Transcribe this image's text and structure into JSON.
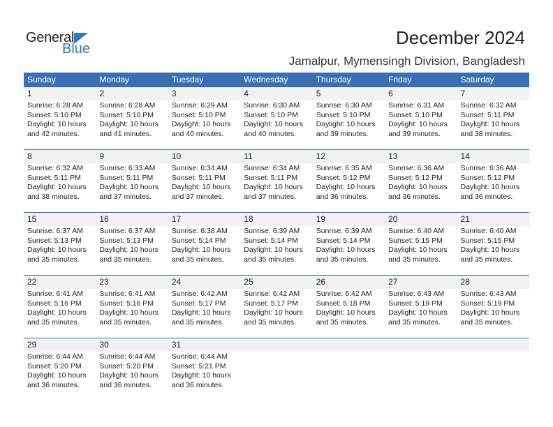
{
  "logo": {
    "text_general": "General",
    "text_blue": "Blue",
    "color": "#2c78c4"
  },
  "header": {
    "title": "December 2024",
    "location": "Jamalpur, Mymensingh Division, Bangladesh"
  },
  "colors": {
    "header_bg": "#3a70b3",
    "daynum_bg": "#f2f2f2"
  },
  "weekdays": [
    "Sunday",
    "Monday",
    "Tuesday",
    "Wednesday",
    "Thursday",
    "Friday",
    "Saturday"
  ],
  "days": [
    {
      "day": "1",
      "sunrise": "Sunrise: 6:28 AM",
      "sunset": "Sunset: 5:10 PM",
      "daylight1": "Daylight: 10 hours",
      "daylight2": "and 42 minutes."
    },
    {
      "day": "2",
      "sunrise": "Sunrise: 6:28 AM",
      "sunset": "Sunset: 5:10 PM",
      "daylight1": "Daylight: 10 hours",
      "daylight2": "and 41 minutes."
    },
    {
      "day": "3",
      "sunrise": "Sunrise: 6:29 AM",
      "sunset": "Sunset: 5:10 PM",
      "daylight1": "Daylight: 10 hours",
      "daylight2": "and 40 minutes."
    },
    {
      "day": "4",
      "sunrise": "Sunrise: 6:30 AM",
      "sunset": "Sunset: 5:10 PM",
      "daylight1": "Daylight: 10 hours",
      "daylight2": "and 40 minutes."
    },
    {
      "day": "5",
      "sunrise": "Sunrise: 6:30 AM",
      "sunset": "Sunset: 5:10 PM",
      "daylight1": "Daylight: 10 hours",
      "daylight2": "and 39 minutes."
    },
    {
      "day": "6",
      "sunrise": "Sunrise: 6:31 AM",
      "sunset": "Sunset: 5:10 PM",
      "daylight1": "Daylight: 10 hours",
      "daylight2": "and 39 minutes."
    },
    {
      "day": "7",
      "sunrise": "Sunrise: 6:32 AM",
      "sunset": "Sunset: 5:11 PM",
      "daylight1": "Daylight: 10 hours",
      "daylight2": "and 38 minutes."
    },
    {
      "day": "8",
      "sunrise": "Sunrise: 6:32 AM",
      "sunset": "Sunset: 5:11 PM",
      "daylight1": "Daylight: 10 hours",
      "daylight2": "and 38 minutes."
    },
    {
      "day": "9",
      "sunrise": "Sunrise: 6:33 AM",
      "sunset": "Sunset: 5:11 PM",
      "daylight1": "Daylight: 10 hours",
      "daylight2": "and 37 minutes."
    },
    {
      "day": "10",
      "sunrise": "Sunrise: 6:34 AM",
      "sunset": "Sunset: 5:11 PM",
      "daylight1": "Daylight: 10 hours",
      "daylight2": "and 37 minutes."
    },
    {
      "day": "11",
      "sunrise": "Sunrise: 6:34 AM",
      "sunset": "Sunset: 5:11 PM",
      "daylight1": "Daylight: 10 hours",
      "daylight2": "and 37 minutes."
    },
    {
      "day": "12",
      "sunrise": "Sunrise: 6:35 AM",
      "sunset": "Sunset: 5:12 PM",
      "daylight1": "Daylight: 10 hours",
      "daylight2": "and 36 minutes."
    },
    {
      "day": "13",
      "sunrise": "Sunrise: 6:36 AM",
      "sunset": "Sunset: 5:12 PM",
      "daylight1": "Daylight: 10 hours",
      "daylight2": "and 36 minutes."
    },
    {
      "day": "14",
      "sunrise": "Sunrise: 6:36 AM",
      "sunset": "Sunset: 5:12 PM",
      "daylight1": "Daylight: 10 hours",
      "daylight2": "and 36 minutes."
    },
    {
      "day": "15",
      "sunrise": "Sunrise: 6:37 AM",
      "sunset": "Sunset: 5:13 PM",
      "daylight1": "Daylight: 10 hours",
      "daylight2": "and 35 minutes."
    },
    {
      "day": "16",
      "sunrise": "Sunrise: 6:37 AM",
      "sunset": "Sunset: 5:13 PM",
      "daylight1": "Daylight: 10 hours",
      "daylight2": "and 35 minutes."
    },
    {
      "day": "17",
      "sunrise": "Sunrise: 6:38 AM",
      "sunset": "Sunset: 5:14 PM",
      "daylight1": "Daylight: 10 hours",
      "daylight2": "and 35 minutes."
    },
    {
      "day": "18",
      "sunrise": "Sunrise: 6:39 AM",
      "sunset": "Sunset: 5:14 PM",
      "daylight1": "Daylight: 10 hours",
      "daylight2": "and 35 minutes."
    },
    {
      "day": "19",
      "sunrise": "Sunrise: 6:39 AM",
      "sunset": "Sunset: 5:14 PM",
      "daylight1": "Daylight: 10 hours",
      "daylight2": "and 35 minutes."
    },
    {
      "day": "20",
      "sunrise": "Sunrise: 6:40 AM",
      "sunset": "Sunset: 5:15 PM",
      "daylight1": "Daylight: 10 hours",
      "daylight2": "and 35 minutes."
    },
    {
      "day": "21",
      "sunrise": "Sunrise: 6:40 AM",
      "sunset": "Sunset: 5:15 PM",
      "daylight1": "Daylight: 10 hours",
      "daylight2": "and 35 minutes."
    },
    {
      "day": "22",
      "sunrise": "Sunrise: 6:41 AM",
      "sunset": "Sunset: 5:16 PM",
      "daylight1": "Daylight: 10 hours",
      "daylight2": "and 35 minutes."
    },
    {
      "day": "23",
      "sunrise": "Sunrise: 6:41 AM",
      "sunset": "Sunset: 5:16 PM",
      "daylight1": "Daylight: 10 hours",
      "daylight2": "and 35 minutes."
    },
    {
      "day": "24",
      "sunrise": "Sunrise: 6:42 AM",
      "sunset": "Sunset: 5:17 PM",
      "daylight1": "Daylight: 10 hours",
      "daylight2": "and 35 minutes."
    },
    {
      "day": "25",
      "sunrise": "Sunrise: 6:42 AM",
      "sunset": "Sunset: 5:17 PM",
      "daylight1": "Daylight: 10 hours",
      "daylight2": "and 35 minutes."
    },
    {
      "day": "26",
      "sunrise": "Sunrise: 6:42 AM",
      "sunset": "Sunset: 5:18 PM",
      "daylight1": "Daylight: 10 hours",
      "daylight2": "and 35 minutes."
    },
    {
      "day": "27",
      "sunrise": "Sunrise: 6:43 AM",
      "sunset": "Sunset: 5:19 PM",
      "daylight1": "Daylight: 10 hours",
      "daylight2": "and 35 minutes."
    },
    {
      "day": "28",
      "sunrise": "Sunrise: 6:43 AM",
      "sunset": "Sunset: 5:19 PM",
      "daylight1": "Daylight: 10 hours",
      "daylight2": "and 35 minutes."
    },
    {
      "day": "29",
      "sunrise": "Sunrise: 6:44 AM",
      "sunset": "Sunset: 5:20 PM",
      "daylight1": "Daylight: 10 hours",
      "daylight2": "and 36 minutes."
    },
    {
      "day": "30",
      "sunrise": "Sunrise: 6:44 AM",
      "sunset": "Sunset: 5:20 PM",
      "daylight1": "Daylight: 10 hours",
      "daylight2": "and 36 minutes."
    },
    {
      "day": "31",
      "sunrise": "Sunrise: 6:44 AM",
      "sunset": "Sunset: 5:21 PM",
      "daylight1": "Daylight: 10 hours",
      "daylight2": "and 36 minutes."
    }
  ]
}
